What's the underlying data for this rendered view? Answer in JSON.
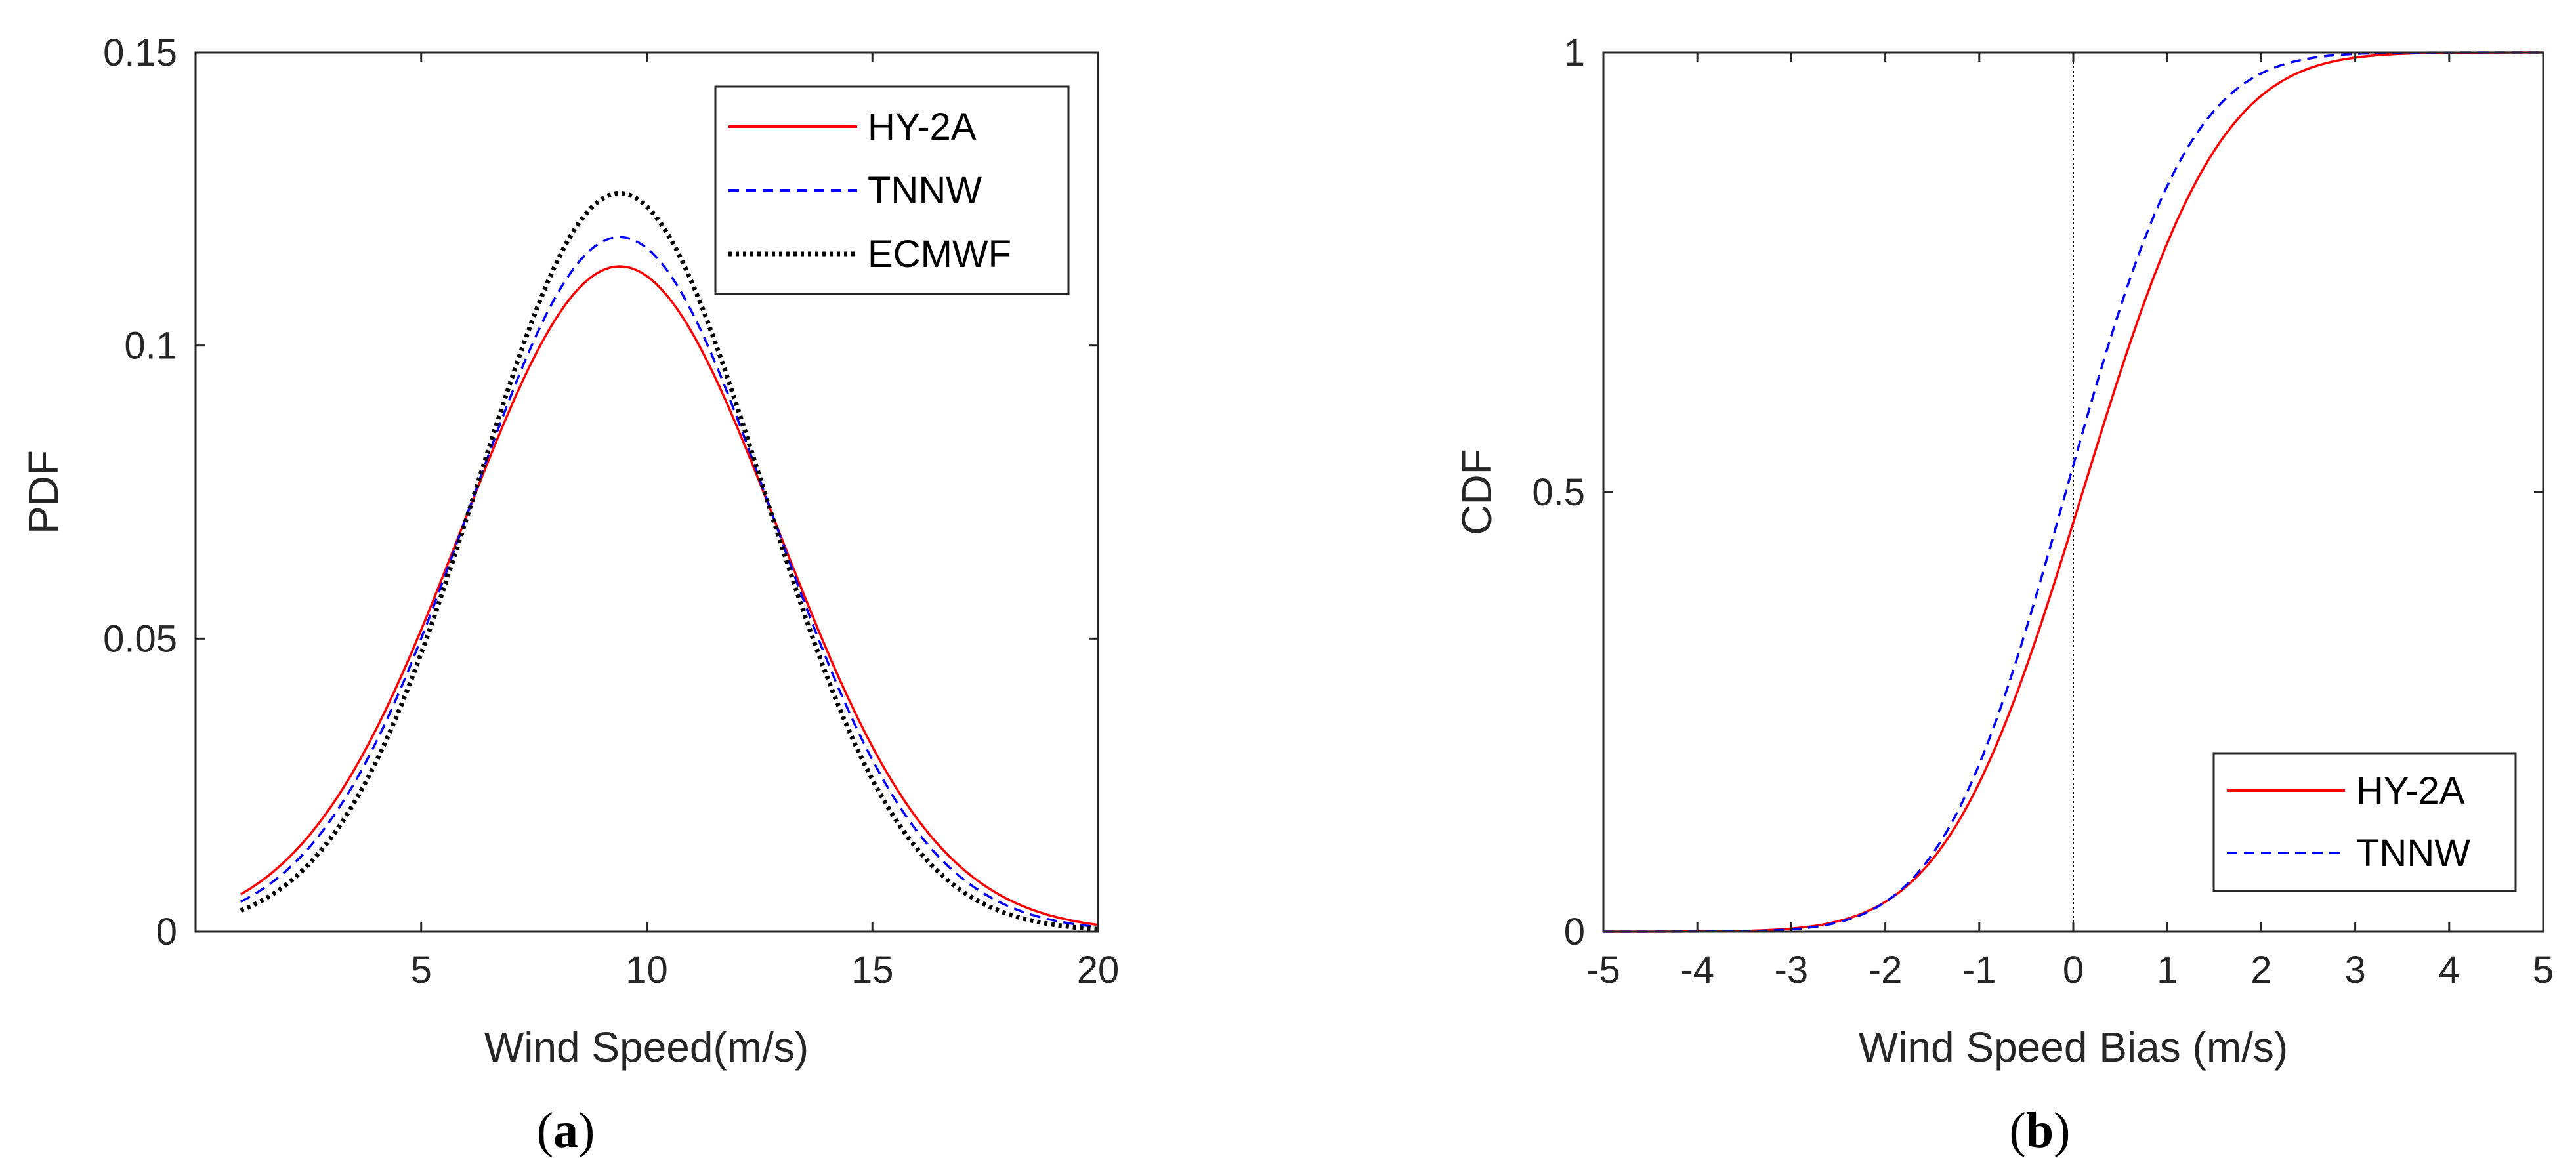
{
  "chart_data": [
    {
      "type": "line",
      "panel": "a",
      "caption": {
        "open": "(",
        "letter": "a",
        "close": ")"
      },
      "xlabel": "Wind Speed(m/s)",
      "ylabel": "PDF",
      "xlim": [
        0,
        20
      ],
      "ylim": [
        0,
        0.15
      ],
      "xticks": [
        5,
        10,
        15,
        20
      ],
      "xtick_labels": [
        "5",
        "10",
        "15",
        "20"
      ],
      "yticks": [
        0,
        0.05,
        0.1,
        0.15
      ],
      "ytick_labels": [
        "0",
        "0.05",
        "0.1",
        "0.15"
      ],
      "grid": false,
      "legend_position": "top-right",
      "x_range": [
        1,
        20
      ],
      "series": [
        {
          "name": "HY-2A",
          "color": "#ff0000",
          "style": "solid",
          "mean": 9.4,
          "std": 3.5,
          "amp": 0.1135
        },
        {
          "name": "TNNW",
          "color": "#0000ff",
          "style": "dashed",
          "mean": 9.4,
          "std": 3.35,
          "amp": 0.1185
        },
        {
          "name": "ECMWF",
          "color": "#000000",
          "style": "dotted",
          "mean": 9.4,
          "std": 3.15,
          "amp": 0.126
        }
      ]
    },
    {
      "type": "line",
      "panel": "b",
      "caption": {
        "open": "(",
        "letter": "b",
        "close": ")"
      },
      "xlabel": "Wind Speed Bias (m/s)",
      "ylabel": "CDF",
      "xlim": [
        -5,
        5
      ],
      "ylim": [
        0,
        1
      ],
      "xticks": [
        -5,
        -4,
        -3,
        -2,
        -1,
        0,
        1,
        2,
        3,
        4,
        5
      ],
      "xtick_labels": [
        "-5",
        "-4",
        "-3",
        "-2",
        "-1",
        "0",
        "1",
        "2",
        "3",
        "4",
        "5"
      ],
      "yticks": [
        0,
        0.5,
        1
      ],
      "ytick_labels": [
        "0",
        "0.5",
        "1"
      ],
      "grid": false,
      "legend_position": "bottom-right",
      "reference_line_x": 0,
      "series": [
        {
          "name": "HY-2A",
          "color": "#ff0000",
          "style": "solid",
          "mean": 0.1,
          "std": 1.15
        },
        {
          "name": "TNNW",
          "color": "#0000ff",
          "style": "dashed",
          "mean": -0.08,
          "std": 1.05
        }
      ]
    }
  ]
}
